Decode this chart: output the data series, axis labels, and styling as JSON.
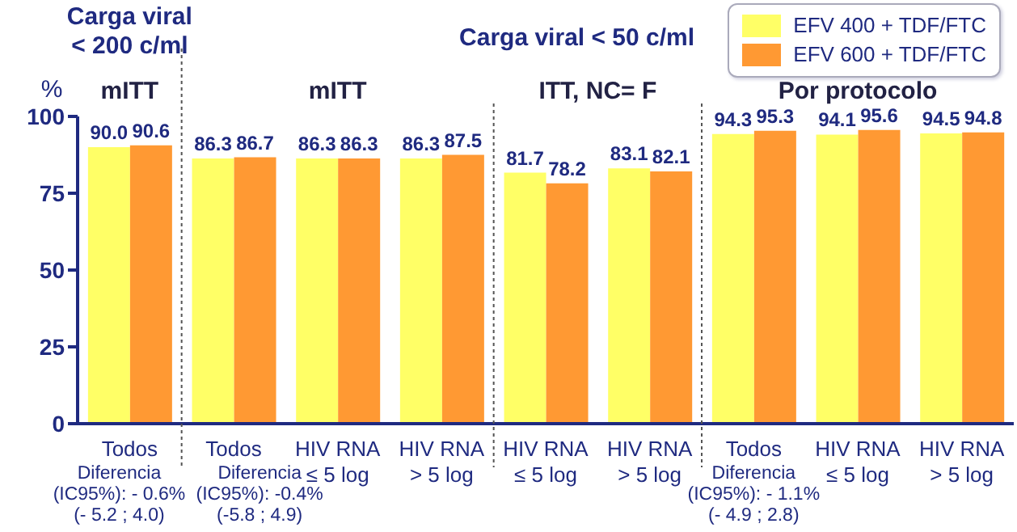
{
  "chart_data": {
    "type": "bar",
    "ylabel": "%",
    "categories": [
      "Todos",
      "Todos",
      "HIV RNA ≤ 5 log",
      "HIV RNA > 5 log",
      "HIV RNA ≤ 5 log",
      "HIV RNA > 5 log",
      "Todos",
      "HIV RNA ≤ 5 log",
      "HIV RNA > 5 log"
    ],
    "series": [
      {
        "name": "EFV 400 + TDF/FTC",
        "color": "#ffff66",
        "values": [
          90.0,
          86.3,
          86.3,
          86.3,
          81.7,
          83.1,
          94.3,
          94.1,
          94.5
        ],
        "value_labels": [
          "90.0",
          "86.3",
          "86.3",
          "86.3",
          "81.7",
          "83.1",
          "94.3",
          "94.1",
          "94.5"
        ]
      },
      {
        "name": "EFV 600 + TDF/FTC",
        "color": "#ff9933",
        "values": [
          90.6,
          86.7,
          86.3,
          87.5,
          78.2,
          82.1,
          95.3,
          95.6,
          94.8
        ],
        "value_labels": [
          "90.6",
          "86.7",
          "86.3",
          "87.5",
          "78.2",
          "82.1",
          "95.3",
          "95.6",
          "94.8"
        ]
      }
    ],
    "ylim": [
      0,
      100
    ],
    "yticks": [
      0,
      25,
      50,
      75,
      100
    ],
    "grid": false,
    "legend": "top right",
    "annotations": [
      "Carga viral < 200 c/ml",
      "Carga viral < 50 c/ml",
      "mITT",
      "mITT",
      "ITT, NC= F",
      "Por protocolo",
      "Diferencia (IC95%): - 0.6% (- 5.2 ; 4.0)",
      "Diferencia (IC95%): -0.4% (-5.8 ; 4.9)",
      "Diferencia (IC95%): - 1.1% (- 4.9 ; 2.8)"
    ]
  }
}
